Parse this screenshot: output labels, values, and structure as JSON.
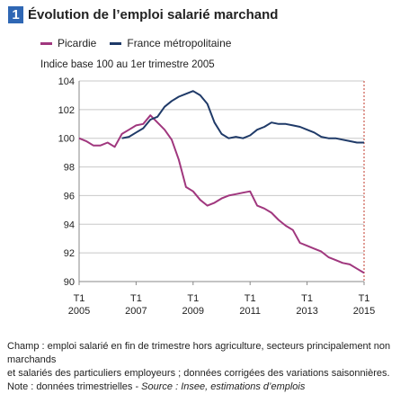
{
  "header": {
    "figure_number": "1",
    "title": "Évolution de l’emploi salarié marchand"
  },
  "footnote": {
    "line1": "Champ : emploi salarié en fin de trimestre hors agriculture, secteurs principalement non marchands",
    "line2": "et salariés des particuliers employeurs ; données corrigées des variations saisonnières.",
    "note_prefix": "Note : données trimestrielles - ",
    "source": "Source : Insee, estimations d’emplois"
  },
  "chart_data": {
    "type": "line",
    "subtitle": "Indice base 100 au 1er trimestre 2005",
    "xlabel": "",
    "ylabel": "",
    "ylim": [
      90,
      104
    ],
    "yticks": [
      90,
      92,
      94,
      96,
      98,
      100,
      102,
      104
    ],
    "xticks": [
      {
        "line1": "T1",
        "line2": "2005",
        "quarter_index": 0
      },
      {
        "line1": "T1",
        "line2": "2007",
        "quarter_index": 8
      },
      {
        "line1": "T1",
        "line2": "2009",
        "quarter_index": 16
      },
      {
        "line1": "T1",
        "line2": "2011",
        "quarter_index": 24
      },
      {
        "line1": "T1",
        "line2": "2013",
        "quarter_index": 32
      },
      {
        "line1": "T1",
        "line2": "2015",
        "quarter_index": 40
      }
    ],
    "grid": "horizontal",
    "legend_position": "top",
    "marker_line_quarter_index": 40,
    "series": [
      {
        "name": "Picardie",
        "color": "#a0377e",
        "values": [
          100.0,
          99.8,
          99.5,
          99.5,
          99.7,
          99.4,
          100.3,
          100.6,
          100.9,
          101.0,
          101.6,
          101.1,
          100.6,
          99.9,
          98.5,
          96.6,
          96.3,
          95.7,
          95.3,
          95.5,
          95.8,
          96.0,
          96.1,
          96.2,
          96.3,
          95.3,
          95.1,
          94.8,
          94.3,
          93.9,
          93.6,
          92.7,
          92.5,
          92.3,
          92.1,
          91.7,
          91.5,
          91.3,
          91.2,
          90.9,
          90.6
        ],
        "x_start_quarter_index": 0
      },
      {
        "name": "France métropolitaine",
        "color": "#1f3a68",
        "values": [
          100.0,
          100.1,
          100.4,
          100.7,
          101.3,
          101.5,
          102.2,
          102.6,
          102.9,
          103.1,
          103.3,
          103.0,
          102.4,
          101.1,
          100.3,
          100.0,
          100.1,
          100.0,
          100.2,
          100.6,
          100.8,
          101.1,
          101.0,
          101.0,
          100.9,
          100.8,
          100.6,
          100.4,
          100.1,
          100.0,
          100.0,
          99.9,
          99.8,
          99.7,
          99.7
        ],
        "x_start_quarter_index": 6
      }
    ]
  }
}
